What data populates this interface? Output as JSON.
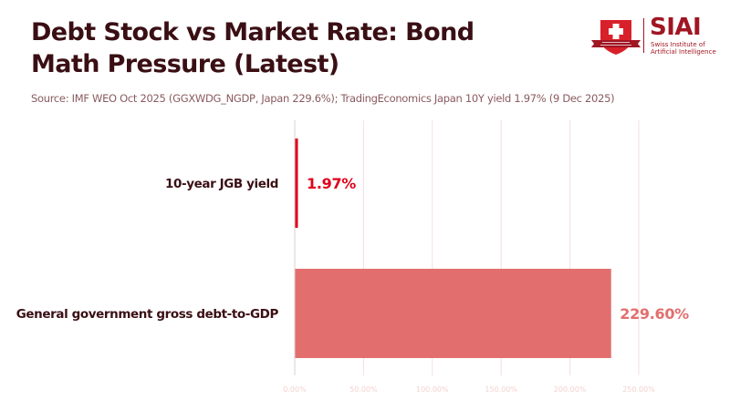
{
  "header": {
    "title": "Debt Stock vs Market Rate: Bond Math Pressure (Latest)",
    "subtitle": "Source: IMF WEO Oct 2025 (GGXWDG_NGDP, Japan 229.6%); TradingEconomics Japan 10Y yield 1.97% (9 Dec 2025)"
  },
  "logo": {
    "name": "SIAI",
    "subtitle_line1": "Swiss Institute of",
    "subtitle_line2": "Artificial Intelligence"
  },
  "colors": {
    "title": "#3a0f14",
    "yield_bar": "#e0001b",
    "debt_bar": "#e36e6e",
    "grid": "#f6dede",
    "tick_text": "#f4d2d2"
  },
  "chart_data": {
    "type": "bar",
    "orientation": "horizontal",
    "title": "Debt Stock vs Market Rate: Bond Math Pressure (Latest)",
    "xlabel": "",
    "ylabel": "",
    "categories": [
      "10-year JGB yield",
      "General government gross debt-to-GDP"
    ],
    "values": [
      1.97,
      229.6
    ],
    "value_labels": [
      "1.97%",
      "229.60%"
    ],
    "bar_colors": [
      "#e0001b",
      "#e36e6e"
    ],
    "xlim": [
      0,
      250
    ],
    "x_ticks": [
      0,
      50,
      100,
      150,
      200,
      250
    ],
    "x_tick_labels": [
      "0.00%",
      "50.00%",
      "100.00%",
      "150.00%",
      "200.00%",
      "250.00%"
    ],
    "grid": true,
    "legend": "none"
  }
}
